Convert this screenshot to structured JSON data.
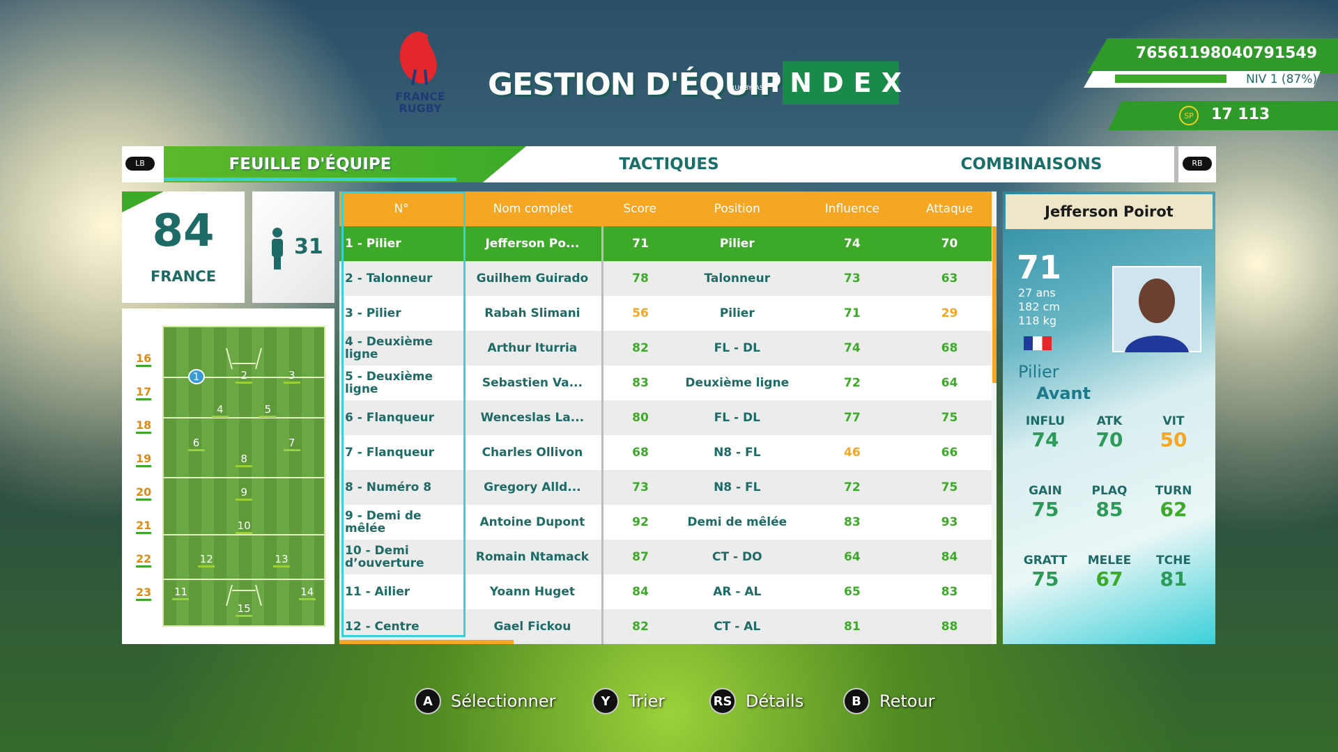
{
  "header": {
    "title": "GESTION D'ÉQUIPE",
    "logo_line1": "FRANCE",
    "logo_line2": "RUGBY",
    "sponsor_small": "RUGBYPASS",
    "sponsor": "INDEX"
  },
  "account": {
    "id": "76561198040791549",
    "level": "NIV 1 (87%)",
    "sp_label": "SP",
    "sp": "17 113"
  },
  "tabs": {
    "left_button": "LB",
    "right_button": "RB",
    "items": [
      "FEUILLE D'ÉQUIPE",
      "TACTIQUES",
      "COMBINAISONS"
    ]
  },
  "team": {
    "rating": 84,
    "name": "FRANCE",
    "players": 31
  },
  "pitch": {
    "bench": [
      16,
      17,
      18,
      19,
      20,
      21,
      22,
      23
    ],
    "positions": [
      1,
      2,
      3,
      4,
      5,
      6,
      7,
      8,
      9,
      10,
      11,
      12,
      13,
      14,
      15
    ]
  },
  "table": {
    "columns": [
      "N°",
      "Nom complet",
      "Score",
      "Position",
      "Influence",
      "Attaque"
    ],
    "rows": [
      [
        "1 - Pilier",
        "Jefferson Po...",
        71,
        "Pilier",
        74,
        70
      ],
      [
        "2 - Talonneur",
        "Guilhem Guirado",
        78,
        "Talonneur",
        73,
        63
      ],
      [
        "3 - Pilier",
        "Rabah Slimani",
        56,
        "Pilier",
        71,
        29
      ],
      [
        "4 - Deuxième ligne",
        "Arthur Iturria",
        82,
        "FL - DL",
        74,
        68
      ],
      [
        "5 - Deuxième ligne",
        "Sebastien Va...",
        83,
        "Deuxième ligne",
        72,
        64
      ],
      [
        "6 - Flanqueur",
        "Wenceslas La...",
        80,
        "FL - DL",
        77,
        75
      ],
      [
        "7 - Flanqueur",
        "Charles Ollivon",
        68,
        "N8 - FL",
        46,
        66
      ],
      [
        "8 - Numéro 8",
        "Gregory Alld...",
        73,
        "N8 - FL",
        72,
        75
      ],
      [
        "9 - Demi de mêlée",
        "Antoine Dupont",
        92,
        "Demi de mêlée",
        83,
        93
      ],
      [
        "10 - Demi d’ouverture",
        "Romain Ntamack",
        87,
        "CT - DO",
        64,
        84
      ],
      [
        "11 - Ailier",
        "Yoann Huget",
        84,
        "AR - AL",
        65,
        83
      ],
      [
        "12 - Centre",
        "Gael Fickou",
        82,
        "CT - AL",
        81,
        88
      ]
    ]
  },
  "card": {
    "name": "Jefferson Poirot",
    "rating": 71,
    "age": "27 ans",
    "height": "182 cm",
    "weight": "118 kg",
    "position": "Pilier",
    "role": "Avant",
    "stats": [
      {
        "label": "INFLU",
        "value": 74
      },
      {
        "label": "ATK",
        "value": 70
      },
      {
        "label": "VIT",
        "value": 50
      },
      {
        "label": "GAIN",
        "value": 75
      },
      {
        "label": "PLAQ",
        "value": 85
      },
      {
        "label": "TURN",
        "value": 62
      },
      {
        "label": "GRATT",
        "value": 75
      },
      {
        "label": "MELEE",
        "value": 67
      },
      {
        "label": "TCHE",
        "value": 81
      }
    ]
  },
  "footer": [
    {
      "key": "A",
      "label": "Sélectionner"
    },
    {
      "key": "Y",
      "label": "Trier"
    },
    {
      "key": "RS",
      "label": "Détails"
    },
    {
      "key": "B",
      "label": "Retour"
    }
  ]
}
